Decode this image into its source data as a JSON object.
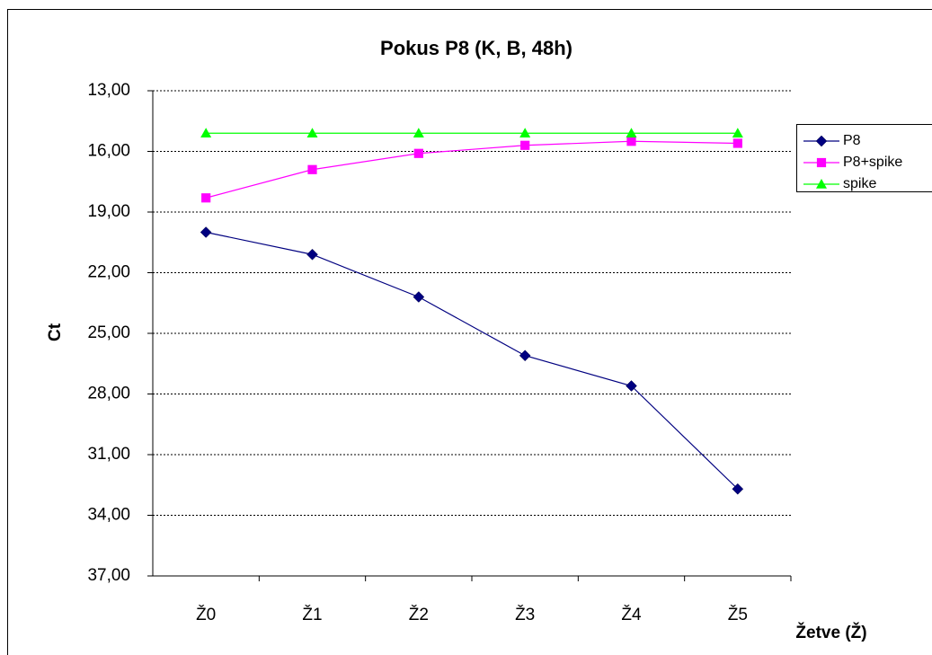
{
  "chart_data": {
    "type": "line",
    "title": "Pokus P8 (K, B, 48h)",
    "y_label": "Ct",
    "x_label": "Žetve (Ž)",
    "categories": [
      "Ž0",
      "Ž1",
      "Ž2",
      "Ž3",
      "Ž4",
      "Ž5"
    ],
    "series": [
      {
        "name": "P8",
        "color": "#000080",
        "marker": "diamond",
        "values": [
          20.0,
          21.1,
          23.2,
          26.1,
          27.6,
          32.7
        ]
      },
      {
        "name": "P8+spike",
        "color": "#ff00ff",
        "marker": "square",
        "values": [
          18.3,
          16.9,
          16.1,
          15.7,
          15.5,
          15.6
        ]
      },
      {
        "name": "spike",
        "color": "#00ff00",
        "marker": "triangle",
        "values": [
          15.1,
          15.1,
          15.1,
          15.1,
          15.1,
          15.1
        ]
      }
    ],
    "ylim": [
      13,
      37
    ],
    "y_inverted": true,
    "yticks": [
      {
        "value": 13,
        "label": "13,00"
      },
      {
        "value": 16,
        "label": "16,00"
      },
      {
        "value": 19,
        "label": "19,00"
      },
      {
        "value": 22,
        "label": "22,00"
      },
      {
        "value": 25,
        "label": "25,00"
      },
      {
        "value": 28,
        "label": "28,00"
      },
      {
        "value": 31,
        "label": "31,00"
      },
      {
        "value": 34,
        "label": "34,00"
      },
      {
        "value": 37,
        "label": "37,00"
      }
    ],
    "grid": true,
    "legend": "right"
  }
}
